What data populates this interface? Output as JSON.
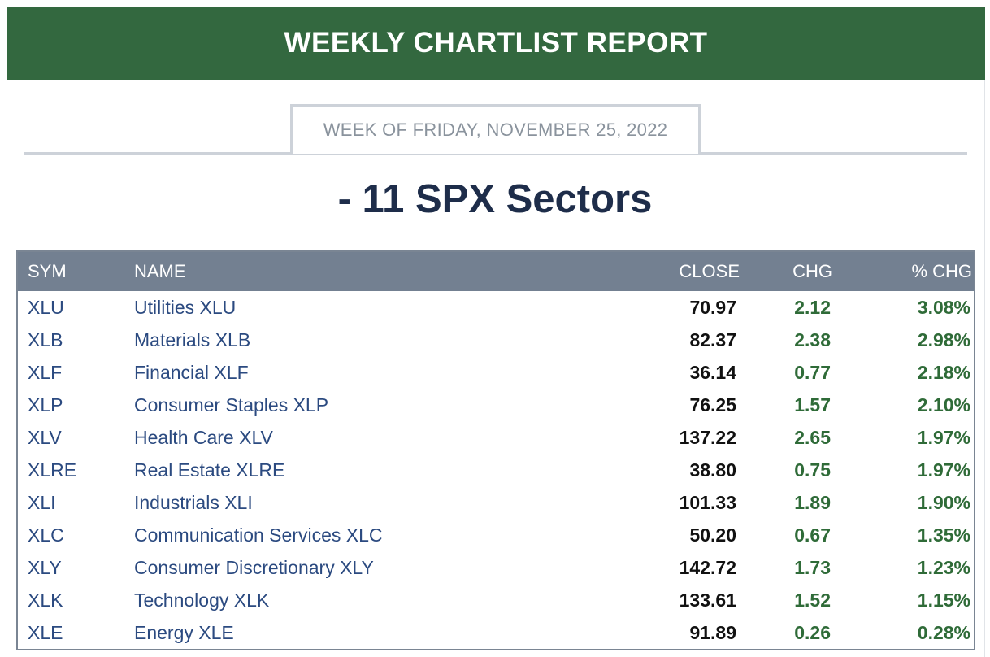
{
  "banner": {
    "title": "WEEKLY CHARTLIST REPORT"
  },
  "week": {
    "label": "WEEK OF FRIDAY, NOVEMBER 25, 2022"
  },
  "section": {
    "title": "- 11 SPX Sectors"
  },
  "table": {
    "headers": {
      "sym": "SYM",
      "name": "NAME",
      "close": "CLOSE",
      "chg": "CHG",
      "pct": "% CHG"
    },
    "rows": [
      {
        "sym": "XLU",
        "name": "Utilities XLU",
        "close": "70.97",
        "chg": "2.12",
        "pct": "3.08%"
      },
      {
        "sym": "XLB",
        "name": "Materials XLB",
        "close": "82.37",
        "chg": "2.38",
        "pct": "2.98%"
      },
      {
        "sym": "XLF",
        "name": "Financial XLF",
        "close": "36.14",
        "chg": "0.77",
        "pct": "2.18%"
      },
      {
        "sym": "XLP",
        "name": "Consumer Staples XLP",
        "close": "76.25",
        "chg": "1.57",
        "pct": "2.10%"
      },
      {
        "sym": "XLV",
        "name": "Health Care XLV",
        "close": "137.22",
        "chg": "2.65",
        "pct": "1.97%"
      },
      {
        "sym": "XLRE",
        "name": "Real Estate XLRE",
        "close": "38.80",
        "chg": "0.75",
        "pct": "1.97%"
      },
      {
        "sym": "XLI",
        "name": "Industrials XLI",
        "close": "101.33",
        "chg": "1.89",
        "pct": "1.90%"
      },
      {
        "sym": "XLC",
        "name": "Communication Services XLC",
        "close": "50.20",
        "chg": "0.67",
        "pct": "1.35%"
      },
      {
        "sym": "XLY",
        "name": "Consumer Discretionary XLY",
        "close": "142.72",
        "chg": "1.73",
        "pct": "1.23%"
      },
      {
        "sym": "XLK",
        "name": "Technology XLK",
        "close": "133.61",
        "chg": "1.52",
        "pct": "1.15%"
      },
      {
        "sym": "XLE",
        "name": "Energy XLE",
        "close": "91.89",
        "chg": "0.26",
        "pct": "0.28%"
      }
    ]
  },
  "colors": {
    "banner_bg": "#33683f",
    "header_bg": "#738091",
    "link": "#2b4a80",
    "positive": "#2f6b38",
    "title": "#1e2d4a"
  }
}
